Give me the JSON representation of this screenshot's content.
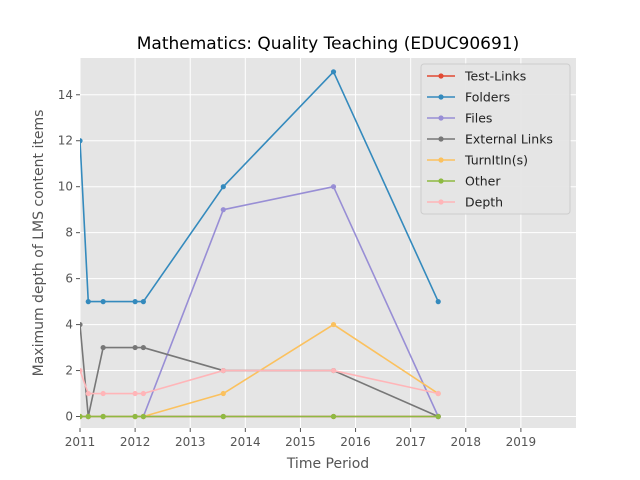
{
  "chart_data": {
    "type": "line",
    "title": "Mathematics: Quality Teaching (EDUC90691)",
    "xlabel": "Time Period",
    "ylabel": "Maximum depth of LMS content items",
    "xlim": [
      2011,
      2020
    ],
    "ylim": [
      -0.5,
      15.6
    ],
    "xticks": [
      2011,
      2012,
      2013,
      2014,
      2015,
      2016,
      2017,
      2018,
      2019
    ],
    "xtick_labels": [
      "2011",
      "2012",
      "2013",
      "2014",
      "2015",
      "2016",
      "2017",
      "2018",
      "2019"
    ],
    "yticks": [
      0,
      2,
      4,
      6,
      8,
      10,
      12,
      14
    ],
    "ytick_labels": [
      "0",
      "2",
      "4",
      "6",
      "8",
      "10",
      "12",
      "14"
    ],
    "grid": true,
    "legend_position": "top-right",
    "x": [
      2011.0,
      2011.15,
      2011.42,
      2012.0,
      2012.15,
      2013.6,
      2015.6,
      2017.5
    ],
    "series": [
      {
        "name": "Test-Links",
        "color": "#E24A33",
        "values": [
          0,
          0,
          0,
          0,
          0,
          0,
          0,
          0
        ]
      },
      {
        "name": "Folders",
        "color": "#348ABD",
        "values": [
          12,
          5,
          5,
          5,
          5,
          10,
          15,
          5
        ]
      },
      {
        "name": "Files",
        "color": "#988ED5",
        "values": [
          0,
          0,
          0,
          0,
          0,
          9,
          10,
          0
        ]
      },
      {
        "name": "External Links",
        "color": "#777777",
        "values": [
          4,
          0,
          3,
          3,
          3,
          2,
          2,
          0
        ]
      },
      {
        "name": "TurnItIn(s)",
        "color": "#FBC15E",
        "values": [
          0,
          0,
          0,
          0,
          0,
          1,
          4,
          1
        ]
      },
      {
        "name": "Other",
        "color": "#8EBA42",
        "values": [
          0,
          0,
          0,
          0,
          0,
          0,
          0,
          0
        ]
      },
      {
        "name": "Depth",
        "color": "#FFB5B8",
        "values": [
          2,
          1,
          1,
          1,
          1,
          2,
          2,
          1
        ]
      }
    ]
  }
}
